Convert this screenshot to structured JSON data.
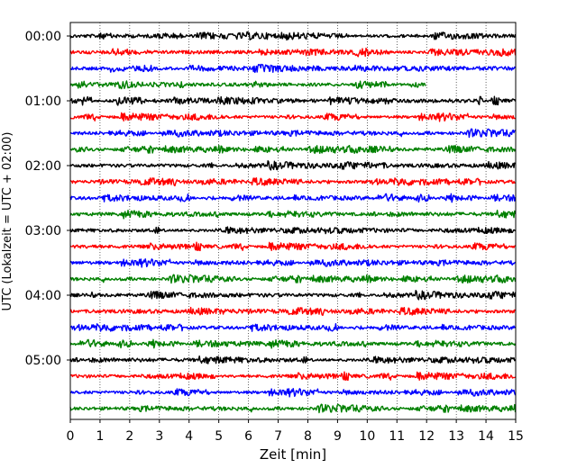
{
  "chart_data": {
    "type": "line",
    "title": "",
    "xlabel": "Zeit  [min]",
    "ylabel": "UTC (Lokalzeit = UTC + 02:00)",
    "xlim": [
      0,
      15
    ],
    "x_ticks": [
      0,
      1,
      2,
      3,
      4,
      5,
      6,
      7,
      8,
      9,
      10,
      11,
      12,
      13,
      14,
      15
    ],
    "y_tick_labels": [
      "00:00",
      "01:00",
      "02:00",
      "03:00",
      "04:00",
      "05:00"
    ],
    "trace_interval_min": 15,
    "grid": "vertical dotted",
    "colors": [
      "#000000",
      "#ff0000",
      "#0000ff",
      "#008000"
    ],
    "traces": [
      {
        "start": "00:00",
        "color": "#000000",
        "length_min": 15
      },
      {
        "start": "00:15",
        "color": "#ff0000",
        "length_min": 15
      },
      {
        "start": "00:30",
        "color": "#0000ff",
        "length_min": 15
      },
      {
        "start": "00:45",
        "color": "#008000",
        "length_min": 12
      },
      {
        "start": "01:00",
        "color": "#000000",
        "length_min": 15
      },
      {
        "start": "01:15",
        "color": "#ff0000",
        "length_min": 15
      },
      {
        "start": "01:30",
        "color": "#0000ff",
        "length_min": 15
      },
      {
        "start": "01:45",
        "color": "#008000",
        "length_min": 15
      },
      {
        "start": "02:00",
        "color": "#000000",
        "length_min": 15
      },
      {
        "start": "02:15",
        "color": "#ff0000",
        "length_min": 15
      },
      {
        "start": "02:30",
        "color": "#0000ff",
        "length_min": 15
      },
      {
        "start": "02:45",
        "color": "#008000",
        "length_min": 15
      },
      {
        "start": "03:00",
        "color": "#000000",
        "length_min": 15
      },
      {
        "start": "03:15",
        "color": "#ff0000",
        "length_min": 15
      },
      {
        "start": "03:30",
        "color": "#0000ff",
        "length_min": 15
      },
      {
        "start": "03:45",
        "color": "#008000",
        "length_min": 15
      },
      {
        "start": "04:00",
        "color": "#000000",
        "length_min": 15
      },
      {
        "start": "04:15",
        "color": "#ff0000",
        "length_min": 15
      },
      {
        "start": "04:30",
        "color": "#0000ff",
        "length_min": 15
      },
      {
        "start": "04:45",
        "color": "#008000",
        "length_min": 15
      },
      {
        "start": "05:00",
        "color": "#000000",
        "length_min": 15
      },
      {
        "start": "05:15",
        "color": "#ff0000",
        "length_min": 15
      },
      {
        "start": "05:30",
        "color": "#0000ff",
        "length_min": 15
      },
      {
        "start": "05:45",
        "color": "#008000",
        "length_min": 15
      }
    ]
  }
}
